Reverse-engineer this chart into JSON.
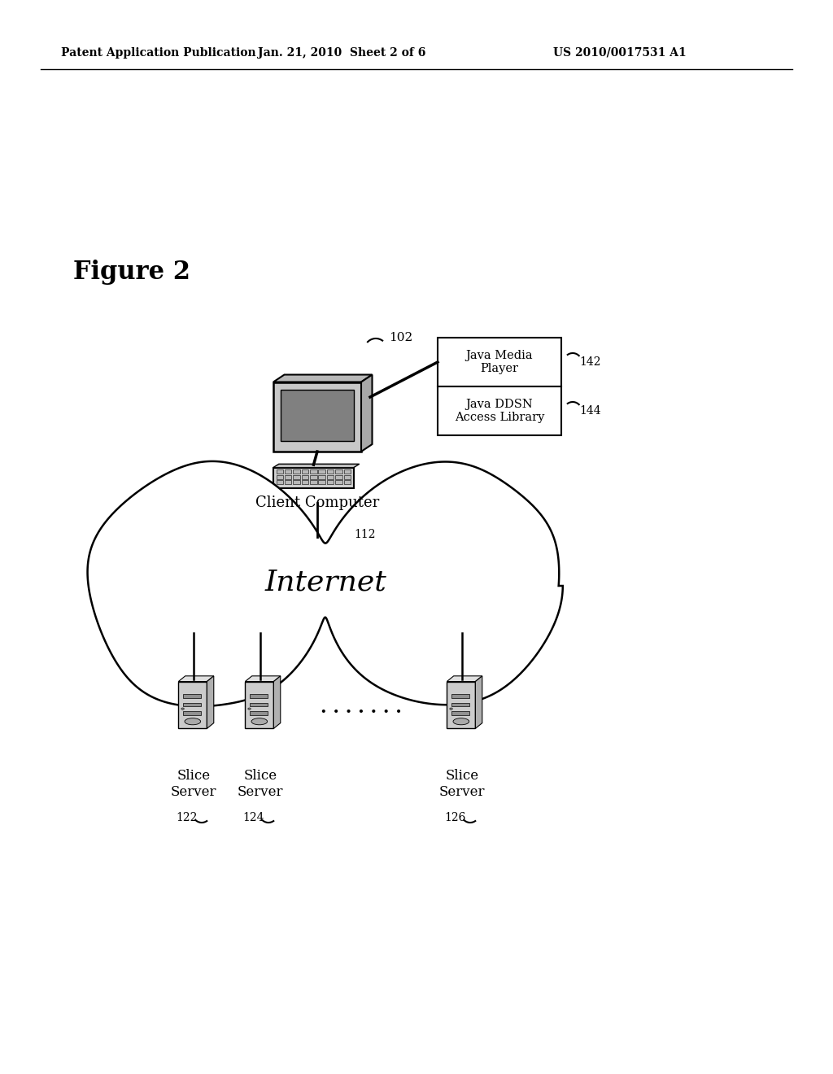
{
  "bg_color": "#ffffff",
  "header_left": "Patent Application Publication",
  "header_center": "Jan. 21, 2010  Sheet 2 of 6",
  "header_right": "US 2010/0017531 A1",
  "figure_label": "Figure 2",
  "node_102_label": "102",
  "client_computer_label": "Client Computer",
  "node_112_label": "112",
  "internet_label": "Internet",
  "java_media_player_label": "Java Media\nPlayer",
  "java_ddsn_label": "Java DDSN\nAccess Library",
  "label_142": "142",
  "label_144": "144",
  "slice_server_label": "Slice\nServer",
  "label_122": "122",
  "label_124": "124",
  "label_126": "126",
  "dots": ". . . . . . ."
}
